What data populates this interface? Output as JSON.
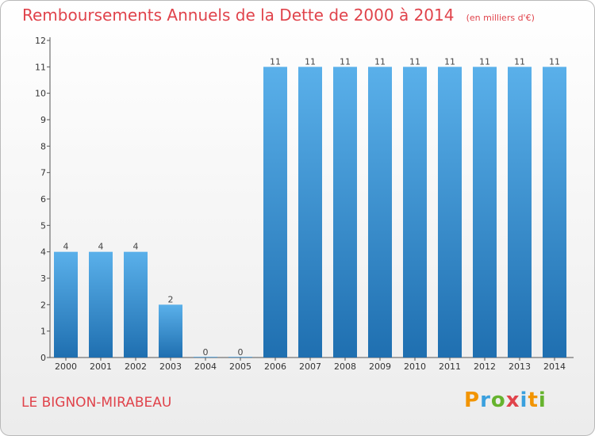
{
  "header": {
    "title": "Remboursements Annuels de la Dette de 2000 à 2014",
    "subtitle": "(en milliers d'€)"
  },
  "footer": {
    "commune": "LE BIGNON-MIRABEAU",
    "logo_text": "Proxiti"
  },
  "colors": {
    "title": "#e0434b",
    "bar_light": "#5ab0ea",
    "bar_dark": "#1f6fb0",
    "logo": [
      "#f29400",
      "#3aa0de",
      "#66b32e",
      "#e0434b",
      "#3aa0de",
      "#f29400",
      "#66b32e"
    ]
  },
  "chart_data": {
    "type": "bar",
    "categories": [
      "2000",
      "2001",
      "2002",
      "2003",
      "2004",
      "2005",
      "2006",
      "2007",
      "2008",
      "2009",
      "2010",
      "2011",
      "2012",
      "2013",
      "2014"
    ],
    "values": [
      4,
      4,
      4,
      2,
      0,
      0,
      11,
      11,
      11,
      11,
      11,
      11,
      11,
      11,
      11
    ],
    "data_labels": [
      "4",
      "4",
      "4",
      "2",
      "0",
      "0",
      "11",
      "11",
      "11",
      "11",
      "11",
      "11",
      "11",
      "11",
      "11"
    ],
    "title": "Remboursements Annuels de la Dette de 2000 à 2014",
    "xlabel": "",
    "ylabel": "",
    "ylim": [
      0,
      12
    ],
    "yticks": [
      0,
      1,
      2,
      3,
      4,
      5,
      6,
      7,
      8,
      9,
      10,
      11,
      12
    ],
    "grid": false,
    "legend": "none"
  }
}
